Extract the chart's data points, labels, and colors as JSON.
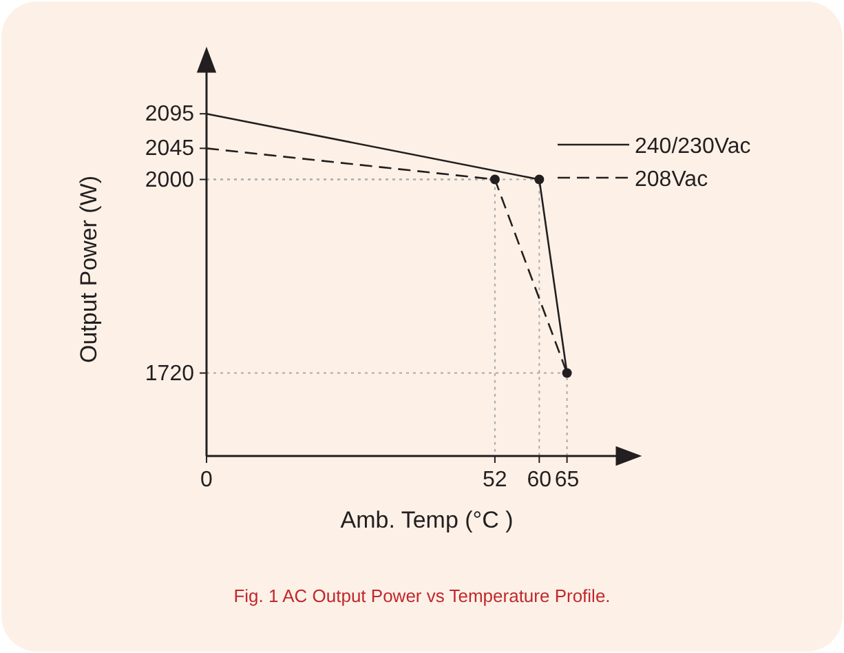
{
  "chart_data": {
    "type": "line",
    "xlabel": "Amb. Temp (°C )",
    "ylabel": "Output Power (W)",
    "x": [
      0,
      60,
      65
    ],
    "xlim": [
      0,
      72
    ],
    "xticks": [
      0,
      52,
      60,
      65
    ],
    "ylim": [
      1600,
      2140
    ],
    "yticks": [
      1720,
      2000,
      2045,
      2095
    ],
    "series": [
      {
        "color": "#a7a9ac",
        "line_style": "dotted",
        "marker": "none",
        "x": [
          0,
          52,
          52
        ],
        "values": [
          2000,
          2000,
          1600
        ]
      },
      {
        "color": "#a7a9ac",
        "line_style": "dotted",
        "marker": "none",
        "x": [
          0,
          60,
          60
        ],
        "values": [
          2000,
          2000,
          1600
        ]
      },
      {
        "color": "#a7a9ac",
        "line_style": "dotted",
        "marker": "none",
        "x": [
          0,
          65,
          65
        ],
        "values": [
          1720,
          1720,
          1600
        ]
      },
      {
        "name": "240/230Vac",
        "color": "#231f20",
        "line_style": "solid",
        "marker": "none",
        "values": [
          2095,
          2000,
          1720
        ]
      },
      {
        "name": "208Vac",
        "color": "#231f20",
        "line_style": "dashed",
        "marker": "none",
        "x": [
          0,
          52,
          65
        ],
        "values": [
          2045,
          2000,
          1720
        ]
      },
      {
        "type": "scatter",
        "color": "#231f20",
        "marker": "circle",
        "x": [
          52,
          60,
          65
        ],
        "values": [
          2000,
          2000,
          1720
        ]
      }
    ],
    "legend": "top right",
    "grid": false,
    "annotations": [
      "Fig. 1 AC Output Power vs Temperature Profile."
    ]
  }
}
